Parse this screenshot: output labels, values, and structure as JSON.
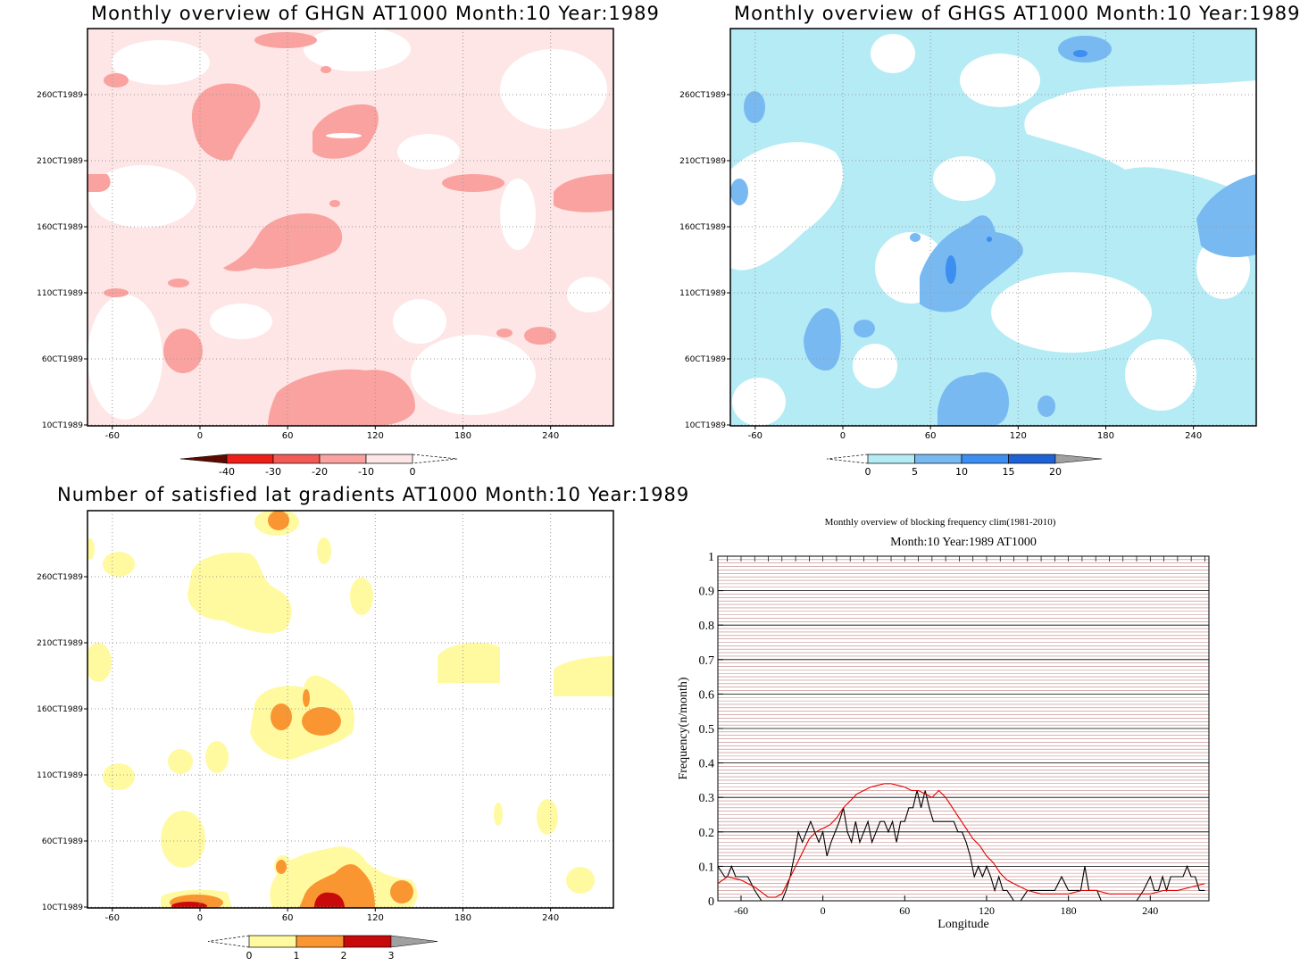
{
  "panels": [
    {
      "title": "Monthly overview of GHGN AT1000 Month:10 Year:1989",
      "y_ticks": [
        "260CT1989",
        "210CT1989",
        "160CT1989",
        "110CT1989",
        "60CT1989",
        "10CT1989"
      ],
      "x_ticks": [
        "-60",
        "0",
        "60",
        "120",
        "180",
        "240"
      ],
      "colorbar": {
        "labels": [
          "-40",
          "-30",
          "-20",
          "-10",
          "0"
        ],
        "colors": [
          "#5c0a00",
          "#ee1e18",
          "#f45a55",
          "#f9a2a0",
          "#fde6e5"
        ]
      },
      "fill_colors": {
        "light": "#fde6e5",
        "mid": "#f9a2a0"
      }
    },
    {
      "title": "Monthly overview of GHGS AT1000 Month:10 Year:1989",
      "y_ticks": [
        "260CT1989",
        "210CT1989",
        "160CT1989",
        "110CT1989",
        "60CT1989",
        "10CT1989"
      ],
      "x_ticks": [
        "-60",
        "0",
        "60",
        "120",
        "180",
        "240"
      ],
      "colorbar": {
        "labels": [
          "0",
          "5",
          "10",
          "15",
          "20"
        ],
        "colors": [
          "#b4ebf5",
          "#78b9f2",
          "#3c8ef0",
          "#1e62d6",
          "#a0a0a0"
        ]
      },
      "fill_colors": {
        "light": "#b4ebf5",
        "mid": "#78b9f2",
        "dark": "#3c8ef0",
        "darkest": "#1e62d6"
      }
    },
    {
      "title": "Number of satisfied lat gradients AT1000 Month:10 Year:1989",
      "y_ticks": [
        "260CT1989",
        "210CT1989",
        "160CT1989",
        "110CT1989",
        "60CT1989",
        "10CT1989"
      ],
      "x_ticks": [
        "-60",
        "0",
        "60",
        "120",
        "180",
        "240"
      ],
      "colorbar": {
        "labels": [
          "0",
          "1",
          "2",
          "3"
        ],
        "colors": [
          "#fffaa0",
          "#fa9632",
          "#c80a0a",
          "#a0a0a0"
        ]
      },
      "fill_colors": {
        "one": "#fffaa0",
        "two": "#fa9632",
        "three": "#c80a0a"
      }
    }
  ],
  "frequency_chart": {
    "title": "Monthly overview of blocking frequency clim(1981-2010)",
    "subtitle": "Month:10 Year:1989  AT1000",
    "xlabel": "Longitude",
    "ylabel": "Frequency(n/month)",
    "y_ticks": [
      "0",
      "0.1",
      "0.2",
      "0.3",
      "0.4",
      "0.5",
      "0.6",
      "0.7",
      "0.8",
      "0.9",
      "1"
    ],
    "x_ticks": [
      "-60",
      "0",
      "60",
      "120",
      "180",
      "240"
    ],
    "colors": {
      "month": "#000000",
      "clim": "#e00000",
      "grid_minor": "#c08080"
    }
  },
  "chart_data": [
    {
      "type": "heatmap",
      "title": "Monthly overview of GHGN AT1000 Month:10 Year:1989",
      "xlim": [
        -77,
        283
      ],
      "x_ticks": [
        -60,
        0,
        60,
        120,
        180,
        240
      ],
      "y_ticks": [
        "10CT1989",
        "60CT1989",
        "110CT1989",
        "160CT1989",
        "210CT1989",
        "260CT1989"
      ],
      "levels": [
        -40,
        -30,
        -20,
        -10,
        0
      ]
    },
    {
      "type": "heatmap",
      "title": "Monthly overview of GHGS AT1000 Month:10 Year:1989",
      "xlim": [
        -77,
        283
      ],
      "x_ticks": [
        -60,
        0,
        60,
        120,
        180,
        240
      ],
      "y_ticks": [
        "10CT1989",
        "60CT1989",
        "110CT1989",
        "160CT1989",
        "210CT1989",
        "260CT1989"
      ],
      "levels": [
        0,
        5,
        10,
        15,
        20
      ]
    },
    {
      "type": "heatmap",
      "title": "Number of satisfied lat gradients AT1000 Month:10 Year:1989",
      "xlim": [
        -77,
        283
      ],
      "x_ticks": [
        -60,
        0,
        60,
        120,
        180,
        240
      ],
      "y_ticks": [
        "10CT1989",
        "60CT1989",
        "110CT1989",
        "160CT1989",
        "210CT1989",
        "260CT1989"
      ],
      "levels": [
        0,
        1,
        2,
        3
      ]
    },
    {
      "type": "line",
      "title": "Monthly overview of blocking frequency clim(1981-2010)",
      "subtitle": "Month:10 Year:1989  AT1000",
      "xlabel": "Longitude",
      "ylabel": "Frequency(n/month)",
      "xlim": [
        -77,
        283
      ],
      "ylim": [
        0,
        1
      ],
      "grid": true,
      "series": [
        {
          "x": [
            -77,
            -72,
            -70,
            -67,
            -64,
            -60,
            -55,
            -50,
            -45,
            -40,
            -35,
            -30,
            -27,
            -24,
            -21,
            -18,
            -15,
            -12,
            -9,
            -6,
            -3,
            0,
            3,
            6,
            9,
            12,
            15,
            18,
            21,
            24,
            27,
            30,
            33,
            36,
            39,
            42,
            45,
            48,
            51,
            54,
            57,
            60,
            63,
            66,
            69,
            72,
            75,
            78,
            81,
            84,
            87,
            90,
            93,
            96,
            99,
            102,
            105,
            108,
            111,
            114,
            117,
            120,
            123,
            126,
            129,
            132,
            135,
            140,
            145,
            150,
            155,
            160,
            165,
            170,
            175,
            180,
            183,
            186,
            189,
            192,
            195,
            198,
            201,
            204,
            210,
            220,
            230,
            235,
            240,
            243,
            246,
            249,
            252,
            255,
            258,
            261,
            264,
            267,
            270,
            273,
            276,
            280
          ],
          "values": [
            0.1,
            0.07,
            0.07,
            0.1,
            0.07,
            0.07,
            0.07,
            0.03,
            0.0,
            0.0,
            0.0,
            0.0,
            0.03,
            0.07,
            0.13,
            0.2,
            0.17,
            0.2,
            0.23,
            0.2,
            0.17,
            0.2,
            0.13,
            0.17,
            0.2,
            0.23,
            0.27,
            0.2,
            0.17,
            0.23,
            0.17,
            0.2,
            0.23,
            0.17,
            0.2,
            0.23,
            0.23,
            0.2,
            0.23,
            0.17,
            0.23,
            0.23,
            0.27,
            0.27,
            0.32,
            0.27,
            0.32,
            0.27,
            0.23,
            0.23,
            0.23,
            0.23,
            0.23,
            0.23,
            0.2,
            0.2,
            0.17,
            0.13,
            0.07,
            0.1,
            0.07,
            0.1,
            0.07,
            0.03,
            0.07,
            0.03,
            0.03,
            0.0,
            0.0,
            0.03,
            0.03,
            0.03,
            0.03,
            0.03,
            0.07,
            0.03,
            0.03,
            0.03,
            0.03,
            0.1,
            0.03,
            0.03,
            0.03,
            0.0,
            0.0,
            0.0,
            0.0,
            0.03,
            0.07,
            0.03,
            0.03,
            0.07,
            0.03,
            0.07,
            0.07,
            0.07,
            0.07,
            0.1,
            0.07,
            0.07,
            0.03,
            0.03
          ]
        },
        {
          "x": [
            -77,
            -70,
            -60,
            -50,
            -40,
            -35,
            -30,
            -25,
            -20,
            -15,
            -10,
            -5,
            0,
            5,
            10,
            15,
            20,
            25,
            30,
            35,
            40,
            45,
            50,
            55,
            60,
            65,
            70,
            75,
            80,
            85,
            90,
            95,
            100,
            105,
            110,
            115,
            120,
            125,
            130,
            135,
            140,
            150,
            160,
            170,
            180,
            190,
            200,
            210,
            220,
            230,
            240,
            250,
            260,
            270,
            280
          ],
          "values": [
            0.05,
            0.07,
            0.06,
            0.04,
            0.01,
            0.01,
            0.02,
            0.06,
            0.1,
            0.14,
            0.18,
            0.2,
            0.21,
            0.22,
            0.24,
            0.27,
            0.29,
            0.31,
            0.32,
            0.33,
            0.335,
            0.34,
            0.34,
            0.335,
            0.33,
            0.32,
            0.32,
            0.31,
            0.3,
            0.32,
            0.3,
            0.27,
            0.24,
            0.21,
            0.18,
            0.16,
            0.13,
            0.11,
            0.08,
            0.06,
            0.05,
            0.03,
            0.02,
            0.02,
            0.02,
            0.03,
            0.03,
            0.02,
            0.02,
            0.02,
            0.02,
            0.03,
            0.03,
            0.04,
            0.05
          ]
        }
      ]
    }
  ]
}
